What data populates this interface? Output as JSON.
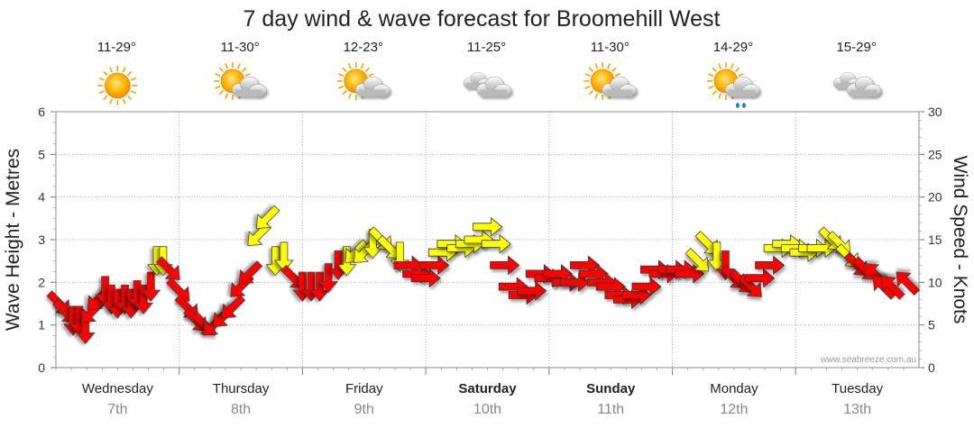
{
  "chart_data": {
    "type": "wind-arrow-timeseries",
    "title": "7 day wind & wave forecast for Broomehill West",
    "ylabel_left": "Wave Height - Metres",
    "ylabel_right": "Wind Speed - Knots",
    "ylim_left": [
      0,
      6
    ],
    "ylim_right": [
      0,
      30
    ],
    "yticks_left": [
      "0",
      "1",
      "2",
      "3",
      "4",
      "5",
      "6"
    ],
    "yticks_right": [
      "0",
      "5",
      "10",
      "15",
      "20",
      "25",
      "30"
    ],
    "grid": true,
    "credit": "www.seabreeze.com.au",
    "colors": {
      "strong": "#ff0000",
      "moderate": "#ffff00",
      "outline": "#333333"
    },
    "days": [
      {
        "name": "Wednesday",
        "date": "7th",
        "bold": false,
        "temp": "11-29°",
        "icon": "sunny-icon"
      },
      {
        "name": "Thursday",
        "date": "8th",
        "bold": false,
        "temp": "11-30°",
        "icon": "partly-cloudy-icon"
      },
      {
        "name": "Friday",
        "date": "9th",
        "bold": false,
        "temp": "12-23°",
        "icon": "partly-cloudy-icon"
      },
      {
        "name": "Saturday",
        "date": "10th",
        "bold": true,
        "temp": "11-25°",
        "icon": "cloudy-icon"
      },
      {
        "name": "Sunday",
        "date": "11th",
        "bold": true,
        "temp": "11-30°",
        "icon": "partly-cloudy-icon"
      },
      {
        "name": "Monday",
        "date": "12th",
        "bold": false,
        "temp": "14-29°",
        "icon": "shower-icon"
      },
      {
        "name": "Tuesday",
        "date": "13th",
        "bold": false,
        "temp": "15-29°",
        "icon": "cloudy-icon"
      }
    ],
    "wind": [
      {
        "t": 0.03,
        "kts": 7.5,
        "dir": "NW"
      },
      {
        "t": 0.08,
        "kts": 6.5,
        "dir": "NW"
      },
      {
        "t": 0.14,
        "kts": 5.5,
        "dir": "N"
      },
      {
        "t": 0.19,
        "kts": 5.5,
        "dir": "N"
      },
      {
        "t": 0.24,
        "kts": 4.5,
        "dir": "N"
      },
      {
        "t": 0.29,
        "kts": 6.5,
        "dir": "NE"
      },
      {
        "t": 0.34,
        "kts": 8.0,
        "dir": "NE"
      },
      {
        "t": 0.4,
        "kts": 9.0,
        "dir": "N"
      },
      {
        "t": 0.45,
        "kts": 8.0,
        "dir": "N"
      },
      {
        "t": 0.5,
        "kts": 7.5,
        "dir": "N"
      },
      {
        "t": 0.56,
        "kts": 8.0,
        "dir": "N"
      },
      {
        "t": 0.61,
        "kts": 7.5,
        "dir": "N"
      },
      {
        "t": 0.66,
        "kts": 8.5,
        "dir": "N"
      },
      {
        "t": 0.71,
        "kts": 8.0,
        "dir": "N"
      },
      {
        "t": 0.77,
        "kts": 9.5,
        "dir": "N"
      },
      {
        "t": 0.82,
        "kts": 12.5,
        "dir": "N"
      },
      {
        "t": 0.87,
        "kts": 12.5,
        "dir": "N"
      },
      {
        "t": 0.92,
        "kts": 11.5,
        "dir": "NW"
      },
      {
        "t": 1.0,
        "kts": 9.0,
        "dir": "NW"
      },
      {
        "t": 1.07,
        "kts": 7.0,
        "dir": "NW"
      },
      {
        "t": 1.14,
        "kts": 5.5,
        "dir": "NW"
      },
      {
        "t": 1.21,
        "kts": 5.0,
        "dir": "NW"
      },
      {
        "t": 1.28,
        "kts": 5.0,
        "dir": "NE"
      },
      {
        "t": 1.36,
        "kts": 6.0,
        "dir": "NE"
      },
      {
        "t": 1.43,
        "kts": 7.0,
        "dir": "NE"
      },
      {
        "t": 1.5,
        "kts": 9.5,
        "dir": "NE"
      },
      {
        "t": 1.57,
        "kts": 11.0,
        "dir": "NE"
      },
      {
        "t": 1.64,
        "kts": 15.5,
        "dir": "NE"
      },
      {
        "t": 1.71,
        "kts": 17.5,
        "dir": "NE"
      },
      {
        "t": 1.78,
        "kts": 12.5,
        "dir": "N"
      },
      {
        "t": 1.85,
        "kts": 13.0,
        "dir": "N"
      },
      {
        "t": 1.93,
        "kts": 10.5,
        "dir": "NW"
      },
      {
        "t": 2.0,
        "kts": 9.5,
        "dir": "N"
      },
      {
        "t": 2.07,
        "kts": 9.5,
        "dir": "N"
      },
      {
        "t": 2.14,
        "kts": 9.5,
        "dir": "N"
      },
      {
        "t": 2.21,
        "kts": 10.5,
        "dir": "N"
      },
      {
        "t": 2.29,
        "kts": 12.0,
        "dir": "N"
      },
      {
        "t": 2.36,
        "kts": 12.5,
        "dir": "N"
      },
      {
        "t": 2.43,
        "kts": 13.5,
        "dir": "NE"
      },
      {
        "t": 2.5,
        "kts": 13.5,
        "dir": "NE"
      },
      {
        "t": 2.57,
        "kts": 14.5,
        "dir": "N"
      },
      {
        "t": 2.64,
        "kts": 15.0,
        "dir": "NW"
      },
      {
        "t": 2.71,
        "kts": 14.0,
        "dir": "NW"
      },
      {
        "t": 2.79,
        "kts": 13.0,
        "dir": "N"
      },
      {
        "t": 2.86,
        "kts": 12.0,
        "dir": "W"
      },
      {
        "t": 2.93,
        "kts": 11.0,
        "dir": "W"
      },
      {
        "t": 3.0,
        "kts": 10.5,
        "dir": "W"
      },
      {
        "t": 3.07,
        "kts": 12.0,
        "dir": "W"
      },
      {
        "t": 3.14,
        "kts": 13.5,
        "dir": "W"
      },
      {
        "t": 3.21,
        "kts": 14.5,
        "dir": "W"
      },
      {
        "t": 3.29,
        "kts": 14.0,
        "dir": "W"
      },
      {
        "t": 3.36,
        "kts": 14.5,
        "dir": "W"
      },
      {
        "t": 3.43,
        "kts": 15.0,
        "dir": "W"
      },
      {
        "t": 3.5,
        "kts": 16.5,
        "dir": "W"
      },
      {
        "t": 3.57,
        "kts": 14.5,
        "dir": "W"
      },
      {
        "t": 3.64,
        "kts": 12.0,
        "dir": "W"
      },
      {
        "t": 3.71,
        "kts": 9.5,
        "dir": "W"
      },
      {
        "t": 3.79,
        "kts": 8.5,
        "dir": "W"
      },
      {
        "t": 3.86,
        "kts": 9.0,
        "dir": "W"
      },
      {
        "t": 3.93,
        "kts": 11.0,
        "dir": "W"
      },
      {
        "t": 4.0,
        "kts": 10.5,
        "dir": "W"
      },
      {
        "t": 4.07,
        "kts": 11.0,
        "dir": "W"
      },
      {
        "t": 4.14,
        "kts": 10.0,
        "dir": "W"
      },
      {
        "t": 4.21,
        "kts": 10.0,
        "dir": "W"
      },
      {
        "t": 4.29,
        "kts": 12.0,
        "dir": "W"
      },
      {
        "t": 4.36,
        "kts": 11.0,
        "dir": "W"
      },
      {
        "t": 4.43,
        "kts": 10.0,
        "dir": "W"
      },
      {
        "t": 4.5,
        "kts": 9.5,
        "dir": "W"
      },
      {
        "t": 4.57,
        "kts": 8.5,
        "dir": "W"
      },
      {
        "t": 4.64,
        "kts": 8.0,
        "dir": "W"
      },
      {
        "t": 4.71,
        "kts": 8.5,
        "dir": "W"
      },
      {
        "t": 4.79,
        "kts": 9.5,
        "dir": "W"
      },
      {
        "t": 4.86,
        "kts": 11.5,
        "dir": "W"
      },
      {
        "t": 4.93,
        "kts": 11.0,
        "dir": "W"
      },
      {
        "t": 5.0,
        "kts": 11.5,
        "dir": "W"
      },
      {
        "t": 5.07,
        "kts": 11.5,
        "dir": "W"
      },
      {
        "t": 5.14,
        "kts": 11.0,
        "dir": "W"
      },
      {
        "t": 5.21,
        "kts": 12.5,
        "dir": "NW"
      },
      {
        "t": 5.29,
        "kts": 14.5,
        "dir": "NW"
      },
      {
        "t": 5.36,
        "kts": 13.0,
        "dir": "N"
      },
      {
        "t": 5.43,
        "kts": 12.0,
        "dir": "N"
      },
      {
        "t": 5.5,
        "kts": 10.5,
        "dir": "NW"
      },
      {
        "t": 5.57,
        "kts": 10.0,
        "dir": "NW"
      },
      {
        "t": 5.64,
        "kts": 9.5,
        "dir": "NW"
      },
      {
        "t": 5.71,
        "kts": 10.5,
        "dir": "W"
      },
      {
        "t": 5.79,
        "kts": 12.0,
        "dir": "W"
      },
      {
        "t": 5.86,
        "kts": 14.0,
        "dir": "W"
      },
      {
        "t": 5.93,
        "kts": 14.5,
        "dir": "W"
      },
      {
        "t": 6.0,
        "kts": 14.0,
        "dir": "W"
      },
      {
        "t": 6.07,
        "kts": 13.5,
        "dir": "W"
      },
      {
        "t": 6.14,
        "kts": 14.0,
        "dir": "W"
      },
      {
        "t": 6.21,
        "kts": 14.0,
        "dir": "W"
      },
      {
        "t": 6.29,
        "kts": 15.0,
        "dir": "NW"
      },
      {
        "t": 6.36,
        "kts": 14.5,
        "dir": "NW"
      },
      {
        "t": 6.43,
        "kts": 13.0,
        "dir": "NW"
      },
      {
        "t": 6.5,
        "kts": 12.0,
        "dir": "NW"
      },
      {
        "t": 6.57,
        "kts": 11.5,
        "dir": "NW"
      },
      {
        "t": 6.64,
        "kts": 11.0,
        "dir": "SE"
      },
      {
        "t": 6.71,
        "kts": 9.5,
        "dir": "SE"
      },
      {
        "t": 6.78,
        "kts": 9.5,
        "dir": "SE"
      },
      {
        "t": 6.9,
        "kts": 10.0,
        "dir": "SE"
      }
    ]
  }
}
